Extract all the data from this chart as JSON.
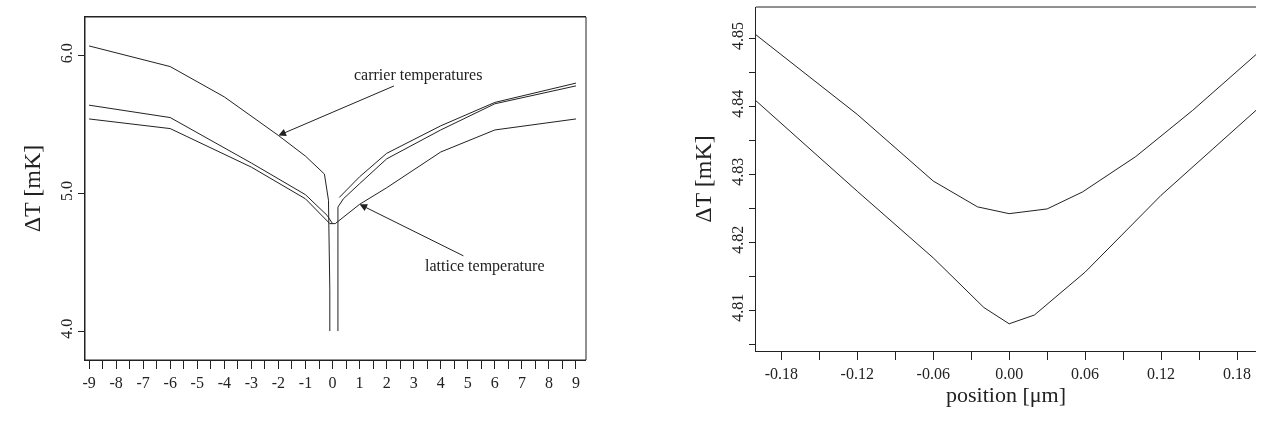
{
  "chart_data": [
    {
      "type": "line",
      "ylabel": "ΔT [mK]",
      "xlim": [
        -9.15,
        9.37
      ],
      "ylim": [
        3.79,
        6.28
      ],
      "xticks": [
        -9,
        -8,
        -7,
        -6,
        -5,
        -4,
        -3,
        -2,
        -1,
        0,
        1,
        2,
        3,
        4,
        5,
        6,
        7,
        8,
        9,
        {
          "value": -8.5,
          "label": null
        },
        {
          "value": -7.5,
          "label": null
        },
        {
          "value": -6.5,
          "label": null
        },
        {
          "value": -5.5,
          "label": null
        },
        {
          "value": -4.5,
          "label": null
        },
        {
          "value": -3.5,
          "label": null
        },
        {
          "value": -2.5,
          "label": null
        },
        {
          "value": -1.5,
          "label": null
        },
        {
          "value": -0.5,
          "label": null
        },
        {
          "value": 0.5,
          "label": null
        },
        {
          "value": 1.5,
          "label": null
        },
        {
          "value": 2.5,
          "label": null
        },
        {
          "value": 3.5,
          "label": null
        },
        {
          "value": 4.5,
          "label": null
        },
        {
          "value": 5.5,
          "label": null
        },
        {
          "value": 6.5,
          "label": null
        },
        {
          "value": 7.5,
          "label": null
        },
        {
          "value": 8.5,
          "label": null
        }
      ],
      "yticks": [
        {
          "value": 4,
          "label": "4.0"
        },
        {
          "value": 5,
          "label": "5.0"
        },
        {
          "value": 6,
          "label": "6.0"
        }
      ],
      "grid": false,
      "marker": "none",
      "line_style": "solid",
      "series": [
        {
          "color": "#222222",
          "x": [
            -9,
            -6,
            -4,
            -2,
            -1,
            -0.3,
            -0.15,
            -0.1,
            -0.1
          ],
          "values": [
            6.07,
            5.92,
            5.7,
            5.42,
            5.27,
            5.14,
            4.95,
            4.3,
            4.0
          ]
        },
        {
          "color": "#222222",
          "x": [
            0.25,
            1,
            2,
            4,
            6,
            9
          ],
          "values": [
            4.97,
            5.12,
            5.29,
            5.49,
            5.66,
            5.8
          ]
        },
        {
          "color": "#222222",
          "x": [
            -9,
            -6,
            -3,
            -1,
            -0.2,
            0
          ],
          "values": [
            5.64,
            5.55,
            5.22,
            4.99,
            4.84,
            4.78
          ]
        },
        {
          "color": "#222222",
          "x": [
            0.2,
            0.2,
            0.4,
            1,
            2,
            4,
            6,
            9
          ],
          "values": [
            4.0,
            4.9,
            4.96,
            5.07,
            5.25,
            5.46,
            5.65,
            5.78
          ]
        },
        {
          "color": "#222222",
          "x": [
            -9,
            -6,
            -3,
            -1,
            -0.1,
            0.1,
            1,
            2,
            4,
            6,
            9
          ],
          "values": [
            5.54,
            5.47,
            5.19,
            4.96,
            4.78,
            4.78,
            4.92,
            5.04,
            5.3,
            5.46,
            5.54
          ]
        }
      ],
      "annotations": [
        {
          "text": "carrier temperatures",
          "x": -2,
          "y": 5.42
        },
        {
          "text": "lattice temperature",
          "x": 1,
          "y": 4.92
        }
      ]
    },
    {
      "type": "line",
      "xlabel": "position [μm]",
      "ylabel": "ΔT [mK]",
      "xlim": [
        -0.2,
        0.195
      ],
      "ylim": [
        4.804,
        4.8546
      ],
      "xticks": [
        {
          "value": -0.18,
          "label": "-0.18"
        },
        {
          "value": -0.12,
          "label": "-0.12"
        },
        {
          "value": -0.06,
          "label": "-0.06"
        },
        {
          "value": 0,
          "label": "0.00"
        },
        {
          "value": 0.06,
          "label": "0.06"
        },
        {
          "value": 0.12,
          "label": "0.12"
        },
        {
          "value": 0.18,
          "label": "0.18"
        },
        {
          "value": -0.15,
          "label": null
        },
        {
          "value": -0.09,
          "label": null
        },
        {
          "value": -0.03,
          "label": null
        },
        {
          "value": 0.03,
          "label": null
        },
        {
          "value": 0.09,
          "label": null
        },
        {
          "value": 0.15,
          "label": null
        }
      ],
      "yticks": [
        4.81,
        4.82,
        4.83,
        4.84,
        4.85,
        {
          "value": 4.805,
          "label": null
        },
        {
          "value": 4.815,
          "label": null
        },
        {
          "value": 4.825,
          "label": null
        },
        {
          "value": 4.835,
          "label": null
        },
        {
          "value": 4.845,
          "label": null
        }
      ],
      "grid": false,
      "marker": "none",
      "line_style": "solid",
      "series": [
        {
          "color": "#222222",
          "x": [
            -0.2,
            -0.12,
            -0.06,
            -0.025,
            0,
            0.03,
            0.058,
            0.1,
            0.145,
            0.195
          ],
          "values": [
            4.8505,
            4.8388,
            4.829,
            4.8252,
            4.8242,
            4.8249,
            4.8274,
            4.8326,
            4.8394,
            4.8476
          ]
        },
        {
          "color": "#222222",
          "x": [
            -0.2,
            -0.12,
            -0.06,
            -0.02,
            0,
            0.02,
            0.06,
            0.12,
            0.195
          ],
          "values": [
            4.8408,
            4.8275,
            4.8177,
            4.8104,
            4.808,
            4.8093,
            4.8156,
            4.8269,
            4.8394
          ]
        }
      ]
    }
  ]
}
